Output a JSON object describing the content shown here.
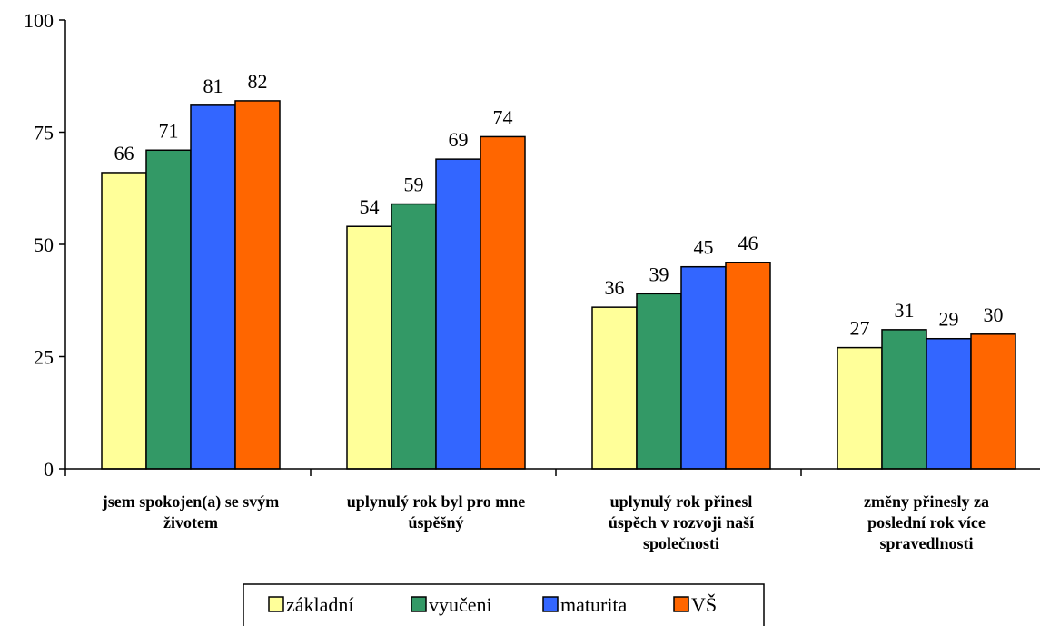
{
  "chart_data": {
    "type": "bar",
    "categories": [
      [
        "jsem spokojen(a) se svým",
        "životem"
      ],
      [
        "uplynulý rok byl pro mne",
        "úspěšný"
      ],
      [
        "uplynulý rok přinesl",
        "úspěch v rozvoji naší",
        "společnosti"
      ],
      [
        "změny přinesly za",
        "poslední rok více",
        "spravedlnosti"
      ]
    ],
    "series": [
      {
        "name": "základní",
        "color": "#FFFF99",
        "values": [
          66,
          54,
          36,
          27
        ]
      },
      {
        "name": "vyučeni",
        "color": "#339966",
        "values": [
          71,
          59,
          39,
          31
        ]
      },
      {
        "name": "maturita",
        "color": "#3366FF",
        "values": [
          81,
          69,
          45,
          29
        ]
      },
      {
        "name": "VŠ",
        "color": "#FF6600",
        "values": [
          82,
          74,
          46,
          30
        ]
      }
    ],
    "yticks": [
      0,
      25,
      50,
      75,
      100
    ],
    "ylim": [
      0,
      100
    ],
    "legend_position": "bottom",
    "grid": false
  }
}
